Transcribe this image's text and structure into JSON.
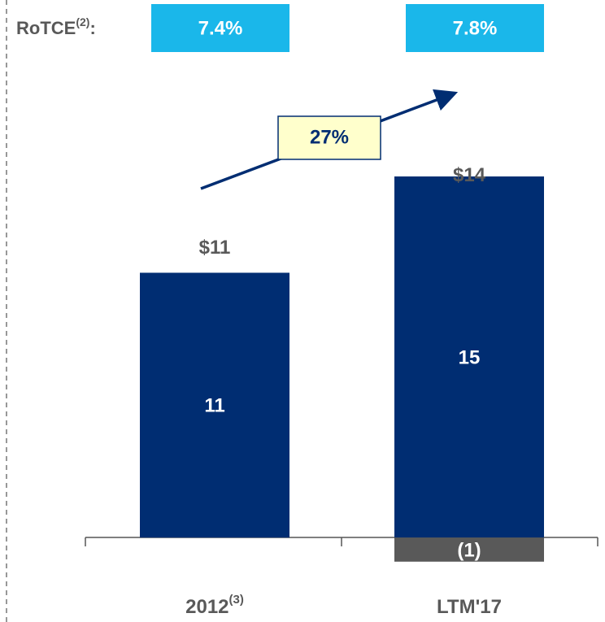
{
  "chart_data": {
    "type": "bar",
    "stacked": true,
    "categories": [
      "2012",
      "LTM'17"
    ],
    "category_superscripts": [
      "(3)",
      null
    ],
    "series": [
      {
        "color": "#002d72",
        "values": [
          11,
          15
        ]
      },
      {
        "color": "#595959",
        "values": [
          null,
          -1
        ],
        "value_labels": [
          null,
          "(1)"
        ]
      }
    ],
    "totals": [
      11,
      14
    ],
    "total_labels": [
      "$11",
      "$14"
    ],
    "rotce": {
      "label": "RoTCE",
      "superscript": "(2)",
      "suffix": ":",
      "values": [
        7.4,
        7.8
      ],
      "value_labels": [
        "7.4%",
        "7.8%"
      ],
      "color": "#1ab7ea"
    },
    "annotation": "27%",
    "ylim": [
      -3,
      17.5
    ]
  }
}
